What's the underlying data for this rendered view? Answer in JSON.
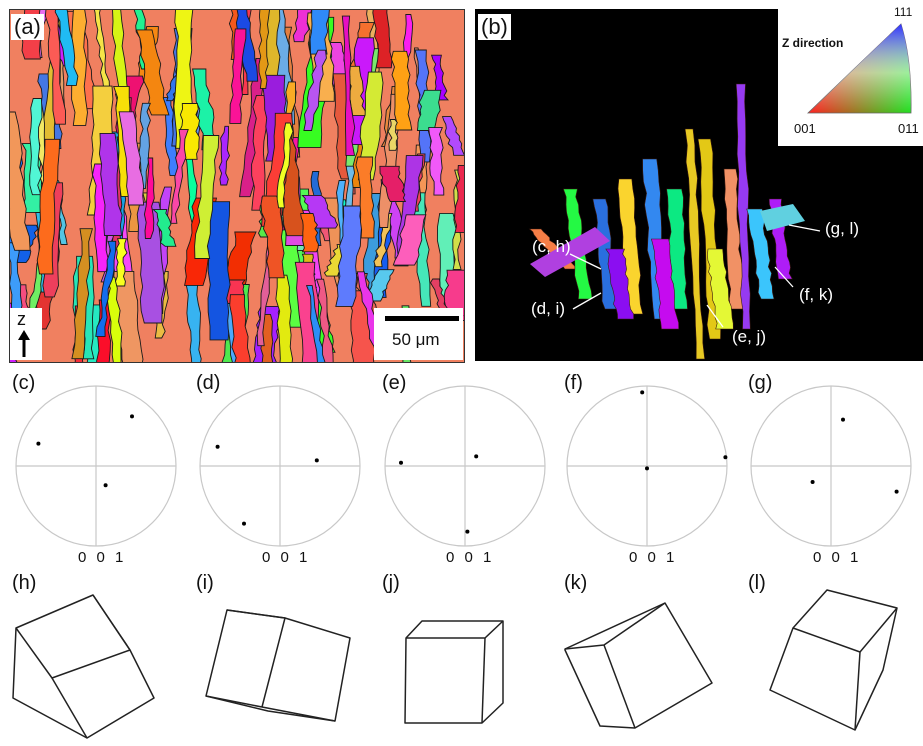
{
  "panels": {
    "a": "(a)",
    "b": "(b)",
    "c": "(c)",
    "d": "(d)",
    "e": "(e)",
    "f": "(f)",
    "g": "(g)",
    "h": "(h)",
    "i": "(i)",
    "j": "(j)",
    "k": "(k)",
    "l": "(l)"
  },
  "map": {
    "axis_label": "z",
    "scale_bar": "50 μm"
  },
  "legend": {
    "title": "Z direction",
    "corner_111": "111",
    "corner_001": "001",
    "corner_011": "011"
  },
  "callouts": [
    {
      "id": "ch",
      "text": "(c, h)"
    },
    {
      "id": "di",
      "text": "(d, i)"
    },
    {
      "id": "ej",
      "text": "(e, j)"
    },
    {
      "id": "fk",
      "text": "(f, k)"
    },
    {
      "id": "gl",
      "text": "(g, l)"
    }
  ],
  "pole_figures": [
    {
      "panel": "c",
      "caption": "0 0 1",
      "poles": [
        [
          0.45,
          0.62
        ],
        [
          -0.72,
          0.28
        ],
        [
          0.12,
          -0.24
        ]
      ]
    },
    {
      "panel": "d",
      "caption": "0 0 1",
      "poles": [
        [
          -0.78,
          0.24
        ],
        [
          0.46,
          0.07
        ],
        [
          -0.45,
          -0.72
        ]
      ]
    },
    {
      "panel": "e",
      "caption": "0 0 1",
      "poles": [
        [
          0.14,
          0.12
        ],
        [
          -0.8,
          0.04
        ],
        [
          0.03,
          -0.82
        ]
      ]
    },
    {
      "panel": "f",
      "caption": "0 0 1",
      "poles": [
        [
          -0.06,
          0.92
        ],
        [
          0.98,
          0.11
        ],
        [
          0.0,
          -0.03
        ]
      ]
    },
    {
      "panel": "g",
      "caption": "0 0 1",
      "poles": [
        [
          0.15,
          0.58
        ],
        [
          -0.23,
          -0.2
        ],
        [
          0.82,
          -0.32
        ]
      ]
    }
  ],
  "colors": {
    "map_boundary": "#1a1a1a",
    "background_black": "#000000",
    "pole_circle": "#c8c8c8",
    "callout_line": "#ffffff"
  }
}
